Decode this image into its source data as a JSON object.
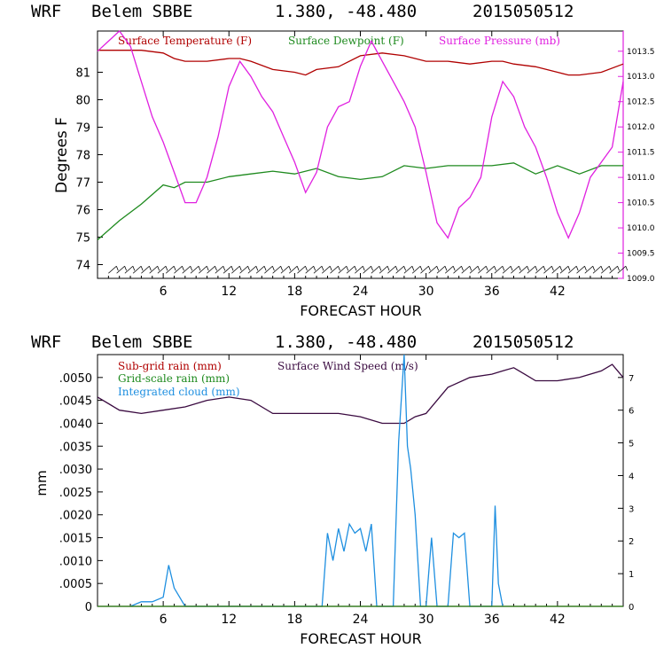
{
  "charts": [
    {
      "header": {
        "model": "WRF",
        "station": "Belem SBBE",
        "coords": "1.380, -48.480",
        "run": "2015050512"
      },
      "x_label": "FORECAST HOUR",
      "y_label": "Degrees F",
      "legend": [
        "Surface Temperature (F)",
        "Surface Dewpoint (F)",
        "Surface Pressure (mb)"
      ],
      "left_ticks": [
        "74",
        "75",
        "76",
        "77",
        "78",
        "79",
        "80",
        "81"
      ],
      "right_ticks": [
        "1009.0",
        "1009.5",
        "1010.0",
        "1010.5",
        "1011.0",
        "1011.5",
        "1012.0",
        "1012.5",
        "1013.0",
        "1013.5"
      ],
      "x_ticks": [
        "6",
        "12",
        "18",
        "24",
        "30",
        "36",
        "42"
      ]
    },
    {
      "header": {
        "model": "WRF",
        "station": "Belem SBBE",
        "coords": "1.380, -48.480",
        "run": "2015050512"
      },
      "x_label": "FORECAST HOUR",
      "y_label": "mm",
      "legend": [
        "Sub-grid rain (mm)",
        "Surface Wind Speed (m/s)",
        "Grid-scale rain (mm)",
        "Integrated cloud (mm)"
      ],
      "left_ticks": [
        "0",
        ".0005",
        ".0010",
        ".0015",
        ".0020",
        ".0025",
        ".0030",
        ".0035",
        ".0040",
        ".0045",
        ".0050"
      ],
      "right_ticks": [
        "0",
        "1",
        "2",
        "3",
        "4",
        "5",
        "6",
        "7"
      ],
      "x_ticks": [
        "6",
        "12",
        "18",
        "24",
        "30",
        "36",
        "42"
      ]
    }
  ],
  "colors": {
    "temperature": "#b00000",
    "dewpoint": "#1e8a1e",
    "pressure": "#e020e0",
    "wind": "#3a0a40",
    "cloud": "#1e8fe0",
    "subgrid": "#b00000",
    "gridscale": "#1e8a1e",
    "frame_right_top": "#e020e0"
  },
  "chart_data": [
    {
      "type": "line",
      "title": "WRF Belem SBBE 1.380, -48.480 2015050512",
      "xlabel": "FORECAST HOUR",
      "ylabel": "Degrees F",
      "xlim": [
        0,
        48
      ],
      "ylim": [
        73.5,
        82.5
      ],
      "y2lim": [
        1009.0,
        1013.9
      ],
      "series": [
        {
          "name": "Surface Temperature (F)",
          "axis": "left",
          "x": [
            0,
            2,
            4,
            6,
            7,
            8,
            10,
            12,
            13,
            14,
            16,
            18,
            19,
            20,
            22,
            24,
            26,
            28,
            30,
            32,
            34,
            36,
            37,
            38,
            40,
            42,
            43,
            44,
            46,
            48
          ],
          "values": [
            81.8,
            81.8,
            81.8,
            81.7,
            81.5,
            81.4,
            81.4,
            81.5,
            81.5,
            81.4,
            81.1,
            81.0,
            80.9,
            81.1,
            81.2,
            81.6,
            81.7,
            81.6,
            81.4,
            81.4,
            81.3,
            81.4,
            81.4,
            81.3,
            81.2,
            81.0,
            80.9,
            80.9,
            81.0,
            81.3
          ]
        },
        {
          "name": "Surface Dewpoint (F)",
          "axis": "left",
          "x": [
            0,
            2,
            4,
            6,
            7,
            8,
            10,
            12,
            14,
            16,
            18,
            20,
            22,
            24,
            26,
            28,
            30,
            32,
            34,
            36,
            38,
            40,
            42,
            44,
            46,
            48
          ],
          "values": [
            74.9,
            75.6,
            76.2,
            76.9,
            76.8,
            77.0,
            77.0,
            77.2,
            77.3,
            77.4,
            77.3,
            77.5,
            77.2,
            77.1,
            77.2,
            77.6,
            77.5,
            77.6,
            77.6,
            77.6,
            77.7,
            77.3,
            77.6,
            77.3,
            77.6,
            77.6
          ]
        },
        {
          "name": "Surface Pressure (mb)",
          "axis": "right",
          "x": [
            0,
            1,
            2,
            3,
            4,
            5,
            6,
            7,
            8,
            9,
            10,
            11,
            12,
            13,
            14,
            15,
            16,
            17,
            18,
            19,
            20,
            21,
            22,
            23,
            24,
            25,
            26,
            27,
            28,
            29,
            30,
            31,
            32,
            33,
            34,
            35,
            36,
            37,
            38,
            39,
            40,
            41,
            42,
            43,
            44,
            45,
            46,
            47,
            48
          ],
          "values": [
            1013.5,
            1013.7,
            1013.9,
            1013.6,
            1012.9,
            1012.2,
            1011.7,
            1011.1,
            1010.5,
            1010.5,
            1011.0,
            1011.8,
            1012.8,
            1013.3,
            1013.0,
            1012.6,
            1012.3,
            1011.8,
            1011.3,
            1010.7,
            1011.1,
            1012.0,
            1012.4,
            1012.5,
            1013.2,
            1013.7,
            1013.3,
            1012.9,
            1012.5,
            1012.0,
            1011.1,
            1010.1,
            1009.8,
            1010.4,
            1010.6,
            1011.0,
            1012.2,
            1012.9,
            1012.6,
            1012.0,
            1011.6,
            1011.0,
            1010.3,
            1009.8,
            1010.3,
            1011.0,
            1011.3,
            1011.6,
            1012.9
          ]
        }
      ],
      "wind_barbs": "row of wind barbs along the bottom near 74 F"
    },
    {
      "type": "line",
      "title": "WRF Belem SBBE 1.380, -48.480 2015050512",
      "xlabel": "FORECAST HOUR",
      "ylabel": "mm",
      "xlim": [
        0,
        48
      ],
      "ylim": [
        0,
        0.0055
      ],
      "y2lim": [
        0,
        7.7
      ],
      "series": [
        {
          "name": "Surface Wind Speed (m/s)",
          "axis": "right",
          "x": [
            0,
            2,
            4,
            6,
            8,
            10,
            12,
            14,
            16,
            18,
            20,
            22,
            24,
            26,
            28,
            29,
            30,
            32,
            34,
            36,
            37,
            38,
            39,
            40,
            42,
            44,
            46,
            47,
            48
          ],
          "values": [
            6.4,
            6.0,
            5.9,
            6.0,
            6.1,
            6.3,
            6.4,
            6.3,
            5.9,
            5.9,
            5.9,
            5.9,
            5.8,
            5.6,
            5.6,
            5.8,
            5.9,
            6.7,
            7.0,
            7.1,
            7.2,
            7.3,
            7.1,
            6.9,
            6.9,
            7.0,
            7.2,
            7.4,
            7.0
          ]
        },
        {
          "name": "Integrated cloud (mm)",
          "axis": "left",
          "x": [
            3,
            4,
            5,
            6,
            6.5,
            7,
            8,
            20.5,
            21,
            21.5,
            22,
            22.5,
            23,
            23.5,
            24,
            24.5,
            25,
            25.5,
            27,
            27.5,
            28,
            28.3,
            28.6,
            29,
            29.5,
            30,
            30.5,
            31,
            31.5,
            32,
            32.5,
            33,
            33.5,
            34,
            36,
            36.3,
            36.6,
            37
          ],
          "values": [
            0,
            0.0001,
            0.0001,
            0.0002,
            0.0009,
            0.0004,
            0,
            0,
            0.0016,
            0.001,
            0.0017,
            0.0012,
            0.0018,
            0.0016,
            0.0017,
            0.0012,
            0.0018,
            0,
            0,
            0.0036,
            0.0055,
            0.0035,
            0.003,
            0.002,
            0,
            0,
            0.0015,
            0,
            0,
            0,
            0.0016,
            0.0015,
            0.0016,
            0,
            0,
            0.0022,
            0.0005,
            0
          ]
        },
        {
          "name": "Sub-grid rain (mm)",
          "axis": "left",
          "x": [
            0,
            48
          ],
          "values": [
            0,
            0
          ]
        },
        {
          "name": "Grid-scale rain (mm)",
          "axis": "left",
          "x": [
            0,
            48
          ],
          "values": [
            0,
            0
          ]
        }
      ]
    }
  ]
}
